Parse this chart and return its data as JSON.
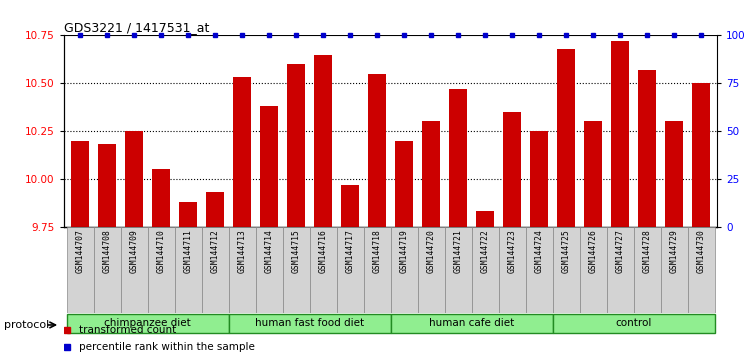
{
  "title": "GDS3221 / 1417531_at",
  "samples": [
    "GSM144707",
    "GSM144708",
    "GSM144709",
    "GSM144710",
    "GSM144711",
    "GSM144712",
    "GSM144713",
    "GSM144714",
    "GSM144715",
    "GSM144716",
    "GSM144717",
    "GSM144718",
    "GSM144719",
    "GSM144720",
    "GSM144721",
    "GSM144722",
    "GSM144723",
    "GSM144724",
    "GSM144725",
    "GSM144726",
    "GSM144727",
    "GSM144728",
    "GSM144729",
    "GSM144730"
  ],
  "values": [
    10.2,
    10.18,
    10.25,
    10.05,
    9.88,
    9.93,
    10.53,
    10.38,
    10.6,
    10.65,
    9.97,
    10.55,
    10.2,
    10.3,
    10.47,
    9.83,
    10.35,
    10.25,
    10.68,
    10.3,
    10.72,
    10.57,
    10.3,
    10.5
  ],
  "groups": [
    {
      "label": "chimpanzee diet",
      "start": 0,
      "end": 6
    },
    {
      "label": "human fast food diet",
      "start": 6,
      "end": 12
    },
    {
      "label": "human cafe diet",
      "start": 12,
      "end": 18
    },
    {
      "label": "control",
      "start": 18,
      "end": 24
    }
  ],
  "bar_color": "#CC0000",
  "percentile_color": "#0000CC",
  "ylim_left": [
    9.75,
    10.75
  ],
  "ylim_right": [
    0,
    100
  ],
  "yticks_left": [
    9.75,
    10.0,
    10.25,
    10.5,
    10.75
  ],
  "yticks_right": [
    0,
    25,
    50,
    75,
    100
  ],
  "grid_lines": [
    10.0,
    10.25,
    10.5
  ],
  "background_color": "#ffffff",
  "protocol_label": "protocol",
  "group_color": "#90EE90",
  "group_border_color": "#228B22",
  "sample_box_color": "#D3D3D3"
}
